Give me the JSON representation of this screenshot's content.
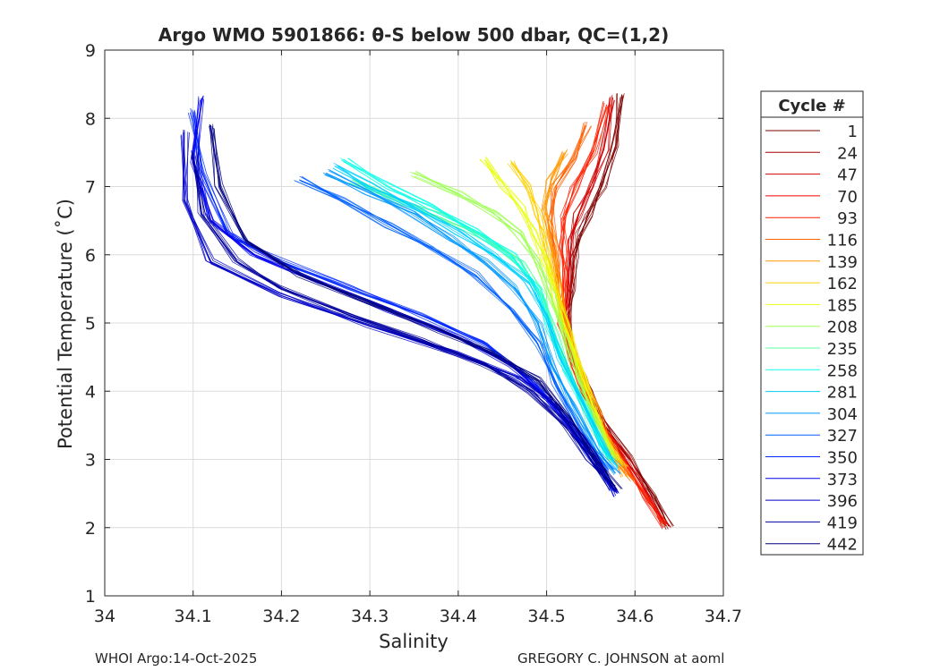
{
  "chart_data": {
    "type": "line",
    "title": "Argo WMO 5901866: θ-S below 500 dbar,  QC=(1,2)",
    "xlabel": "Salinity",
    "ylabel": "Potential Temperature (˚C)",
    "xlim": [
      34.0,
      34.7
    ],
    "ylim": [
      1,
      9
    ],
    "xticks": [
      "34",
      "34.1",
      "34.2",
      "34.3",
      "34.4",
      "34.5",
      "34.6",
      "34.7"
    ],
    "yticks": [
      "1",
      "2",
      "3",
      "4",
      "5",
      "6",
      "7",
      "8",
      "9"
    ],
    "grid": true,
    "legend": {
      "title": "Cycle #",
      "placement": "outside-right",
      "entries": [
        {
          "label": "1",
          "color": "#7f0000"
        },
        {
          "label": "24",
          "color": "#a80000"
        },
        {
          "label": "47",
          "color": "#d00000"
        },
        {
          "label": "70",
          "color": "#f80000"
        },
        {
          "label": "93",
          "color": "#ff2000"
        },
        {
          "label": "116",
          "color": "#ff6000"
        },
        {
          "label": "139",
          "color": "#ff9800"
        },
        {
          "label": "162",
          "color": "#ffd000"
        },
        {
          "label": "185",
          "color": "#e8ff10"
        },
        {
          "label": "208",
          "color": "#a0ff58"
        },
        {
          "label": "235",
          "color": "#58ffa0"
        },
        {
          "label": "258",
          "color": "#10ffe8"
        },
        {
          "label": "281",
          "color": "#00d0ff"
        },
        {
          "label": "304",
          "color": "#0098ff"
        },
        {
          "label": "327",
          "color": "#0060ff"
        },
        {
          "label": "350",
          "color": "#0028ff"
        },
        {
          "label": "373",
          "color": "#0000f0"
        },
        {
          "label": "396",
          "color": "#0000c8"
        },
        {
          "label": "419",
          "color": "#0000a0"
        },
        {
          "label": "442",
          "color": "#000080"
        }
      ]
    },
    "series": [
      {
        "color": "#7f0000",
        "x": [
          34.585,
          34.578,
          34.562,
          34.548,
          34.538,
          34.531,
          34.528,
          34.524,
          34.532,
          34.546,
          34.566,
          34.594,
          34.622,
          34.638
        ],
        "y": [
          8.35,
          7.6,
          7.0,
          6.6,
          6.3,
          5.95,
          5.5,
          5.0,
          4.5,
          4.0,
          3.5,
          3.0,
          2.45,
          2.02
        ]
      },
      {
        "color": "#d00000",
        "x": [
          34.575,
          34.565,
          34.55,
          34.536,
          34.528,
          34.526,
          34.522,
          34.53,
          34.544,
          34.563,
          34.59,
          34.618,
          34.635
        ],
        "y": [
          8.3,
          7.55,
          7.0,
          6.6,
          6.25,
          5.8,
          5.1,
          4.5,
          4.0,
          3.5,
          3.0,
          2.4,
          2.02
        ]
      },
      {
        "color": "#ff2000",
        "x": [
          34.568,
          34.552,
          34.532,
          34.52,
          34.518,
          34.52,
          34.518,
          34.528,
          34.542,
          34.56,
          34.586,
          34.612,
          34.632
        ],
        "y": [
          8.2,
          7.5,
          7.0,
          6.55,
          6.1,
          5.7,
          5.0,
          4.5,
          4.0,
          3.5,
          3.0,
          2.45,
          2.05
        ]
      },
      {
        "color": "#ff6000",
        "x": [
          34.545,
          34.53,
          34.51,
          34.505,
          34.51,
          34.515,
          34.525,
          34.54,
          34.558,
          34.58,
          34.598
        ],
        "y": [
          7.9,
          7.4,
          7.0,
          6.5,
          6.0,
          5.4,
          4.8,
          4.2,
          3.6,
          3.0,
          2.7
        ]
      },
      {
        "color": "#ff9800",
        "x": [
          34.52,
          34.505,
          34.498,
          34.505,
          34.512,
          34.522,
          34.538,
          34.556,
          34.576,
          34.59
        ],
        "y": [
          7.5,
          7.1,
          6.7,
          6.2,
          5.6,
          5.0,
          4.3,
          3.7,
          3.1,
          2.75
        ]
      },
      {
        "color": "#ffd000",
        "x": [
          34.46,
          34.48,
          34.49,
          34.495,
          34.5,
          34.51,
          34.52,
          34.536,
          34.552,
          34.572,
          34.586
        ],
        "y": [
          7.35,
          7.0,
          6.6,
          6.3,
          6.0,
          5.6,
          5.0,
          4.4,
          3.8,
          3.2,
          2.9
        ]
      },
      {
        "color": "#e8ff10",
        "x": [
          34.43,
          34.45,
          34.47,
          34.485,
          34.5,
          34.51,
          34.525,
          34.54,
          34.558,
          34.576
        ],
        "y": [
          7.4,
          7.05,
          6.7,
          6.3,
          5.9,
          5.4,
          4.8,
          4.2,
          3.6,
          3.0
        ]
      },
      {
        "color": "#a0ff58",
        "x": [
          34.35,
          34.4,
          34.44,
          34.47,
          34.49,
          34.505,
          34.52,
          34.535,
          34.555,
          34.574
        ],
        "y": [
          7.2,
          6.9,
          6.6,
          6.3,
          5.9,
          5.4,
          4.8,
          4.2,
          3.6,
          3.0
        ]
      },
      {
        "color": "#58ffa0",
        "x": [
          34.28,
          34.33,
          34.38,
          34.43,
          34.47,
          34.495,
          34.51,
          34.528,
          34.548,
          34.57
        ],
        "y": [
          7.1,
          6.8,
          6.55,
          6.25,
          5.9,
          5.4,
          4.8,
          4.2,
          3.6,
          3.0
        ]
      },
      {
        "color": "#10ffe8",
        "x": [
          34.27,
          34.32,
          34.37,
          34.42,
          34.46,
          34.49,
          34.505,
          34.522,
          34.545,
          34.568
        ],
        "y": [
          7.4,
          7.0,
          6.7,
          6.35,
          6.0,
          5.5,
          4.9,
          4.3,
          3.7,
          3.05
        ]
      },
      {
        "color": "#00d0ff",
        "x": [
          34.26,
          34.3,
          34.35,
          34.4,
          34.44,
          34.48,
          34.5,
          34.515,
          34.538,
          34.565,
          34.58
        ],
        "y": [
          7.3,
          7.0,
          6.7,
          6.35,
          6.0,
          5.6,
          5.1,
          4.5,
          3.9,
          3.2,
          2.9
        ]
      },
      {
        "color": "#0098ff",
        "x": [
          34.25,
          34.3,
          34.35,
          34.39,
          34.43,
          34.465,
          34.49,
          34.505,
          34.53,
          34.56,
          34.578
        ],
        "y": [
          7.2,
          6.9,
          6.6,
          6.25,
          5.9,
          5.5,
          5.0,
          4.4,
          3.8,
          3.1,
          2.8
        ]
      },
      {
        "color": "#0060ff",
        "x": [
          34.22,
          34.27,
          34.32,
          34.37,
          34.42,
          34.46,
          34.49,
          34.51,
          34.54,
          34.57
        ],
        "y": [
          7.1,
          6.8,
          6.45,
          6.1,
          5.7,
          5.2,
          4.7,
          4.1,
          3.4,
          2.85
        ]
      },
      {
        "color": "#0028ff",
        "x": [
          34.1,
          34.11,
          34.14,
          34.2,
          34.28,
          34.36,
          34.43,
          34.48,
          34.515,
          34.545,
          34.575
        ],
        "y": [
          8.1,
          7.2,
          6.3,
          5.9,
          5.5,
          5.1,
          4.7,
          4.2,
          3.7,
          3.1,
          2.55
        ]
      },
      {
        "color": "#0000f0",
        "x": [
          34.11,
          34.1,
          34.12,
          34.17,
          34.24,
          34.32,
          34.4,
          34.46,
          34.5,
          34.53,
          34.56,
          34.58
        ],
        "y": [
          8.3,
          7.4,
          6.5,
          6.0,
          5.6,
          5.2,
          4.8,
          4.4,
          3.9,
          3.4,
          2.9,
          2.5
        ]
      },
      {
        "color": "#0000c8",
        "x": [
          34.09,
          34.09,
          34.12,
          34.2,
          34.3,
          34.4,
          34.47,
          34.51,
          34.54,
          34.565
        ],
        "y": [
          7.8,
          6.8,
          5.9,
          5.4,
          4.95,
          4.55,
          4.2,
          3.8,
          3.3,
          2.8
        ]
      },
      {
        "color": "#0000a0",
        "x": [
          34.1,
          34.11,
          34.15,
          34.2,
          34.28,
          34.36,
          34.43,
          34.48,
          34.52,
          34.55,
          34.575
        ],
        "y": [
          7.5,
          6.6,
          5.9,
          5.5,
          5.1,
          4.75,
          4.4,
          4.0,
          3.5,
          3.0,
          2.6
        ]
      },
      {
        "color": "#000080",
        "x": [
          34.12,
          34.13,
          34.16,
          34.22,
          34.3,
          34.38,
          34.44,
          34.49,
          34.525,
          34.555,
          34.58
        ],
        "y": [
          7.9,
          7.0,
          6.2,
          5.7,
          5.3,
          4.9,
          4.55,
          4.15,
          3.6,
          3.05,
          2.55
        ]
      }
    ]
  },
  "footer": {
    "left": "WHOI Argo:14-Oct-2025",
    "right": "GREGORY C. JOHNSON at aoml"
  }
}
